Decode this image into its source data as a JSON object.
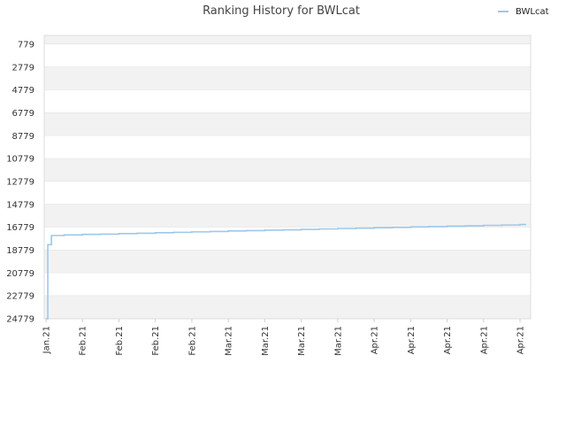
{
  "chart_data": {
    "type": "line",
    "title": "Ranking History for BWLcat",
    "xlabel": "",
    "ylabel": "",
    "y_inverted": true,
    "ylim": [
      24779,
      0
    ],
    "yticks": [
      779,
      2779,
      4779,
      6779,
      8779,
      10779,
      12779,
      14779,
      16779,
      18779,
      20779,
      22779,
      24779
    ],
    "xticks": [
      "Jan.21",
      "Feb.21",
      "Feb.21",
      "Feb.21",
      "Feb.21",
      "Mar.21",
      "Mar.21",
      "Mar.21",
      "Mar.21",
      "Apr.21",
      "Apr.21",
      "Apr.21",
      "Apr.21",
      "Apr.21"
    ],
    "grid": "horizontal-bands",
    "legend": {
      "position": "top-right"
    },
    "series": [
      {
        "name": "BWLcat",
        "color": "#9ec7ea",
        "x": [
          0,
          0.05,
          0.15,
          0.5,
          1,
          1.5,
          2,
          2.5,
          3,
          3.5,
          4,
          4.5,
          5,
          5.5,
          6,
          6.5,
          7,
          7.5,
          8,
          8.5,
          9,
          9.5,
          10,
          10.5,
          11,
          11.5,
          12,
          12.5,
          13
        ],
        "values": [
          24779,
          18300,
          17500,
          17450,
          17400,
          17380,
          17330,
          17300,
          17250,
          17220,
          17180,
          17150,
          17100,
          17070,
          17030,
          17000,
          16960,
          16930,
          16890,
          16860,
          16820,
          16790,
          16750,
          16720,
          16680,
          16650,
          16610,
          16580,
          16540
        ]
      }
    ]
  }
}
